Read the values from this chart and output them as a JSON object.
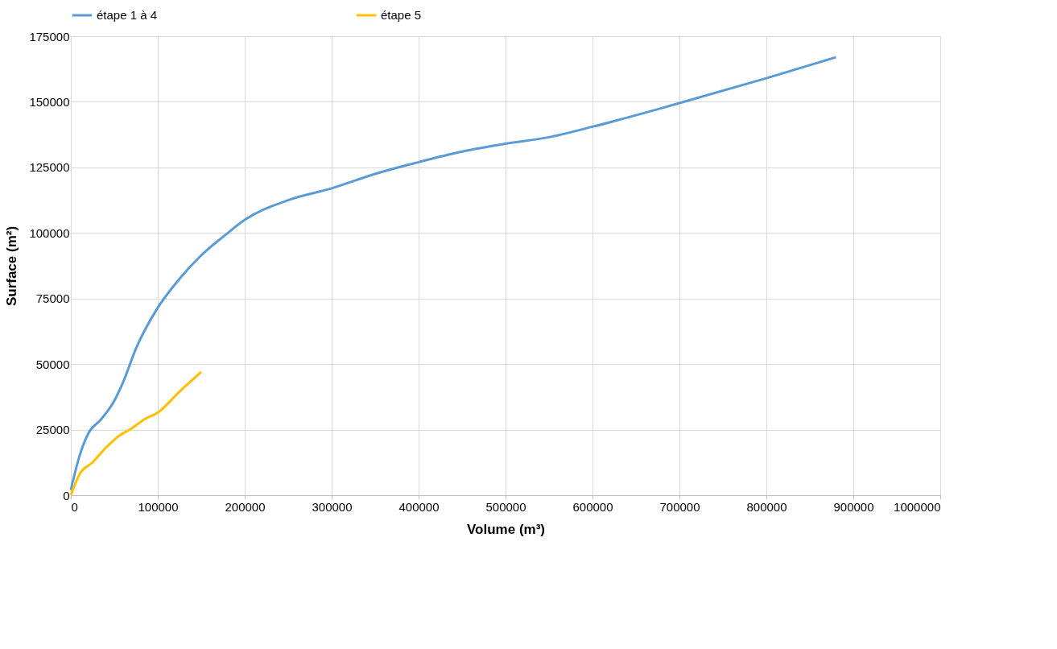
{
  "chart_data": {
    "type": "line",
    "xlabel": "Volume (m³)",
    "ylabel": "Surface (m²)",
    "xlim": [
      0,
      1000000
    ],
    "xticks": [
      0,
      100000,
      200000,
      300000,
      400000,
      500000,
      600000,
      700000,
      800000,
      900000,
      1000000
    ],
    "ylim": [
      0,
      175000
    ],
    "yticks": [
      0,
      25000,
      50000,
      75000,
      100000,
      125000,
      150000,
      175000
    ],
    "grid": true,
    "legend": "top",
    "marker": "none",
    "line_style": "solid",
    "series": [
      {
        "name": "étape 1 à 4",
        "color": "#5b9bd5",
        "x": [
          0,
          10000,
          20000,
          35000,
          50000,
          60000,
          75000,
          100000,
          125000,
          150000,
          175000,
          200000,
          250000,
          300000,
          350000,
          400000,
          450000,
          500000,
          550000,
          600000,
          700000,
          800000,
          880000
        ],
        "values": [
          2000,
          15000,
          23500,
          29000,
          36000,
          43000,
          56000,
          71500,
          82500,
          91500,
          98500,
          105000,
          112500,
          117000,
          122500,
          127000,
          131000,
          134000,
          136500,
          140500,
          149500,
          159000,
          167000
        ]
      },
      {
        "name": "étape 5",
        "color": "#ffc000",
        "x": [
          0,
          10000,
          25000,
          40000,
          55000,
          70000,
          85000,
          100000,
          125000,
          150000
        ],
        "values": [
          0,
          8000,
          12500,
          18000,
          22500,
          25500,
          29000,
          31500,
          39500,
          47000
        ]
      }
    ]
  }
}
